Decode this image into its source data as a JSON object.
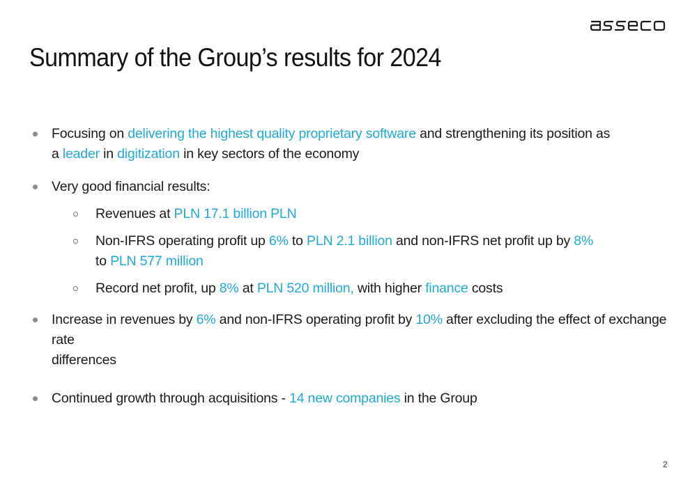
{
  "brand": {
    "logo_text": "asseco",
    "accent_color": "#1fa9d8"
  },
  "title": "Summary of the Group’s results for 2024",
  "b1": {
    "t1": "Focusing on ",
    "h1": "delivering the highest quality proprietary software",
    "t2": " and strengthening its position as",
    "t3": "a ",
    "h2": "leader",
    "t4": " in ",
    "h3": "digitization",
    "t5": " in key sectors of the economy"
  },
  "b2": {
    "t1": "Very good financial results:"
  },
  "s1": {
    "t1": "Revenues at ",
    "h1": "PLN 17.1 billion PLN"
  },
  "s2": {
    "t1": "Non-IFRS operating profit up ",
    "h1": "6%",
    "t2": " to ",
    "h2": "PLN 2.1 billion",
    "t3": " and non-IFRS net profit up by ",
    "h3": "8%",
    "t4": "to ",
    "h4": "PLN 577 million"
  },
  "s3": {
    "t1": "Record net profit, up ",
    "h1": "8%",
    "t2": " at ",
    "h2": "PLN 520 million,",
    "t3": " with higher ",
    "h3": "finance",
    "t4": " costs"
  },
  "b3": {
    "t1": "Increase in revenues by ",
    "h1": "6%",
    "t2": " and non-IFRS operating profit by ",
    "h2": "10%",
    "t3": " after excluding the effect of exchange rate",
    "t4": "differences"
  },
  "b4": {
    "t1": "Continued growth through acquisitions - ",
    "h1": "14 new companies",
    "t2": " in the Group"
  },
  "page_number": "2"
}
